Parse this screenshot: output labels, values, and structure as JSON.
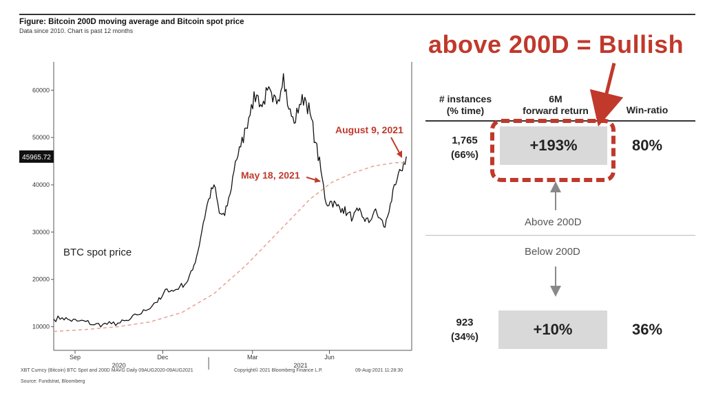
{
  "figure": {
    "title": "Figure: Bitcoin 200D moving average and Bitcoin spot price",
    "subtitle": "Data since 2010.  Chart is past 12 months"
  },
  "chart_data": {
    "type": "line",
    "x_ticks": [
      "Sep",
      "Dec",
      "Mar",
      "Jun"
    ],
    "x_years": [
      "2020",
      "2021"
    ],
    "y_ticks": [
      10000,
      20000,
      30000,
      40000,
      50000,
      60000
    ],
    "ylim": [
      5000,
      66000
    ],
    "last_price_label": "45965.72",
    "series": [
      {
        "name": "BTC spot price",
        "points": [
          [
            0,
            11600
          ],
          [
            8,
            11900
          ],
          [
            15,
            11400
          ],
          [
            22,
            11200
          ],
          [
            30,
            11100
          ],
          [
            38,
            10400
          ],
          [
            46,
            10500
          ],
          [
            54,
            10600
          ],
          [
            62,
            10800
          ],
          [
            70,
            11300
          ],
          [
            78,
            12500
          ],
          [
            86,
            13400
          ],
          [
            94,
            15000
          ],
          [
            100,
            15800
          ],
          [
            106,
            18000
          ],
          [
            112,
            17500
          ],
          [
            118,
            18500
          ],
          [
            124,
            19200
          ],
          [
            130,
            22000
          ],
          [
            135,
            26000
          ],
          [
            140,
            32000
          ],
          [
            145,
            37000
          ],
          [
            150,
            40000
          ],
          [
            155,
            34000
          ],
          [
            160,
            33500
          ],
          [
            165,
            38000
          ],
          [
            170,
            45000
          ],
          [
            175,
            48000
          ],
          [
            180,
            52000
          ],
          [
            185,
            57000
          ],
          [
            190,
            59000
          ],
          [
            195,
            56500
          ],
          [
            200,
            60000
          ],
          [
            205,
            57500
          ],
          [
            210,
            58000
          ],
          [
            215,
            63500
          ],
          [
            220,
            56000
          ],
          [
            225,
            53000
          ],
          [
            230,
            57000
          ],
          [
            235,
            58500
          ],
          [
            240,
            55000
          ],
          [
            245,
            49000
          ],
          [
            250,
            43000
          ],
          [
            255,
            36000
          ],
          [
            260,
            36500
          ],
          [
            265,
            35500
          ],
          [
            270,
            35000
          ],
          [
            275,
            34000
          ],
          [
            280,
            33000
          ],
          [
            285,
            34500
          ],
          [
            290,
            33000
          ],
          [
            295,
            32000
          ],
          [
            300,
            34500
          ],
          [
            305,
            33000
          ],
          [
            310,
            31000
          ],
          [
            315,
            36000
          ],
          [
            320,
            40000
          ],
          [
            325,
            43000
          ],
          [
            330,
            45966
          ]
        ]
      },
      {
        "name": "200D MAVG",
        "points": [
          [
            0,
            9000
          ],
          [
            30,
            9400
          ],
          [
            60,
            10000
          ],
          [
            90,
            11000
          ],
          [
            120,
            13000
          ],
          [
            150,
            17000
          ],
          [
            180,
            23000
          ],
          [
            210,
            30000
          ],
          [
            240,
            37000
          ],
          [
            260,
            40500
          ],
          [
            280,
            42500
          ],
          [
            300,
            44000
          ],
          [
            320,
            44700
          ],
          [
            330,
            44600
          ]
        ]
      }
    ],
    "annotations": {
      "spot_label": "BTC spot price",
      "may": "May 18, 2021",
      "aug": "August 9, 2021"
    }
  },
  "footer": {
    "left": "XBT Curncy (Bitcoin) BTC Spot and 200D MAVG  Daily 09AUG2020-09AUG2021",
    "mid": "Copyright© 2021 Bloomberg Finance L.P.",
    "right": "09-Aug-2021 11:28:30",
    "source": "Source: Fundstrat, Bloomberg"
  },
  "table": {
    "headline": "above 200D = Bullish",
    "headers": {
      "instances": "# instances\n(% time)",
      "forward": "6M\nforward return",
      "win": "Win-ratio"
    },
    "above": {
      "instances": "1,765\n(66%)",
      "return": "+193%",
      "win": "80%",
      "label": "Above 200D"
    },
    "below": {
      "instances": "923\n(34%)",
      "return": "+10%",
      "win": "36%",
      "label": "Below 200D"
    },
    "colors": {
      "accent": "#c0392b",
      "box": "#d9d9d9"
    }
  }
}
